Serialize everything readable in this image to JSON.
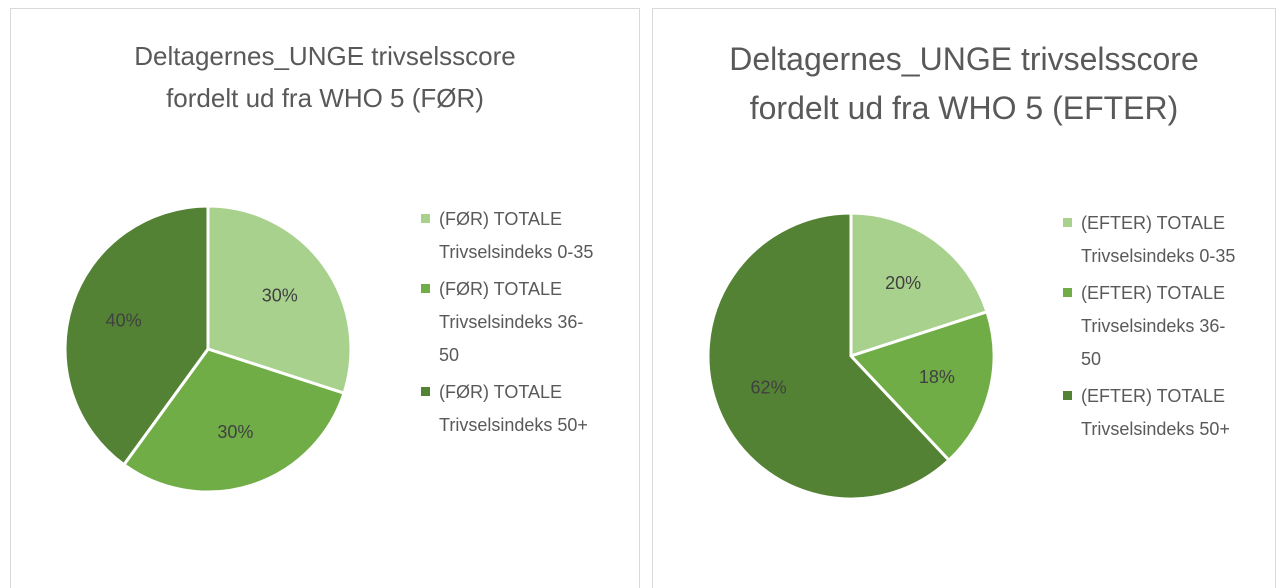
{
  "chart_data": [
    {
      "type": "pie",
      "title": "Deltagernes_UNGE trivselsscore fordelt ud fra WHO 5 (FØR)",
      "categories": [
        "(FØR) TOTALE Trivselsindeks 0-35",
        "(FØR) TOTALE Trivselsindeks 36-50",
        "(FØR) TOTALE Trivselsindeks 50+"
      ],
      "values": [
        30,
        30,
        40
      ],
      "value_labels": [
        "30%",
        "30%",
        "40%"
      ],
      "colors": [
        "#a9d18e",
        "#70ad47",
        "#548235"
      ],
      "legend": "right"
    },
    {
      "type": "pie",
      "title": "Deltagernes_UNGE trivselsscore fordelt ud fra WHO 5 (EFTER)",
      "categories": [
        "(EFTER) TOTALE Trivselsindeks 0-35",
        "(EFTER) TOTALE Trivselsindeks 36-50",
        "(EFTER) TOTALE Trivselsindeks 50+"
      ],
      "values": [
        20,
        18,
        62
      ],
      "value_labels": [
        "20%",
        "18%",
        "62%"
      ],
      "colors": [
        "#a9d18e",
        "#70ad47",
        "#548235"
      ],
      "legend": "right"
    }
  ]
}
